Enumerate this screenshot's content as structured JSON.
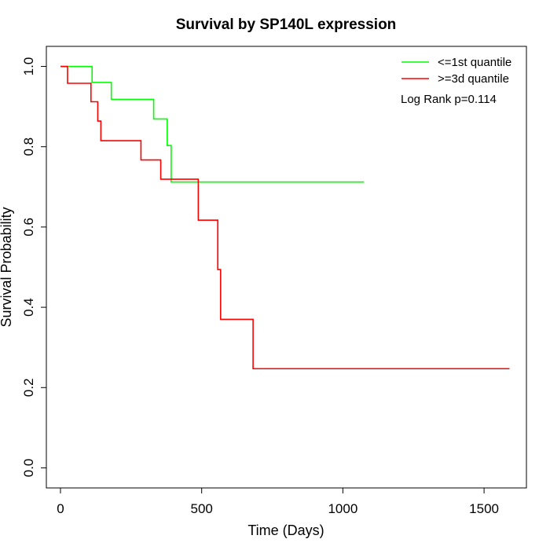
{
  "chart_data": {
    "type": "line",
    "title": "Survival by SP140L expression",
    "xlabel": "Time (Days)",
    "ylabel": "Survival Probability",
    "xlim": [
      -50,
      1650
    ],
    "ylim": [
      -0.05,
      1.05
    ],
    "x_ticks": [
      0,
      500,
      1000,
      1500
    ],
    "x_tick_labels": [
      "0",
      "500",
      "1000",
      "1500"
    ],
    "y_ticks": [
      0.0,
      0.2,
      0.4,
      0.6,
      0.8,
      1.0
    ],
    "y_tick_labels": [
      "0.0",
      "0.2",
      "0.4",
      "0.6",
      "0.8",
      "1.0"
    ],
    "grid": false,
    "legend_position": "top-right",
    "annotation": "Log Rank p=0.114",
    "series": [
      {
        "name": "<=1st quantile",
        "color": "#00ff00",
        "step": true,
        "x": [
          0,
          112,
          180,
          330,
          378,
          392,
          1075
        ],
        "y": [
          1.0,
          0.96,
          0.918,
          0.869,
          0.803,
          0.712,
          0.712
        ]
      },
      {
        "name": ">=3d quantile",
        "color": "#ff0000",
        "step": true,
        "x": [
          0,
          25,
          108,
          132,
          143,
          285,
          355,
          488,
          557,
          567,
          682,
          1590
        ],
        "y": [
          1.0,
          0.958,
          0.912,
          0.864,
          0.815,
          0.767,
          0.719,
          0.617,
          0.494,
          0.37,
          0.247,
          0.247
        ]
      }
    ]
  }
}
